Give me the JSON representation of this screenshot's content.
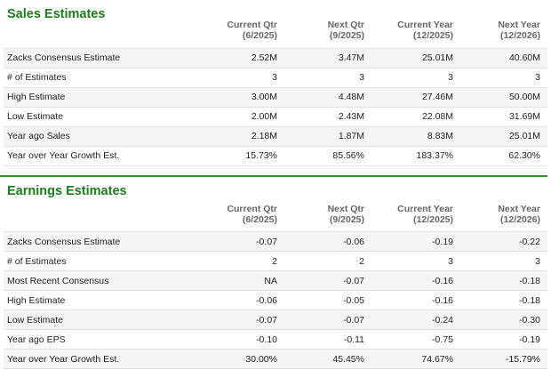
{
  "sales": {
    "title": "Sales Estimates",
    "headers": [
      {
        "line1": "Current Qtr",
        "line2": "(6/2025)"
      },
      {
        "line1": "Next Qtr",
        "line2": "(9/2025)"
      },
      {
        "line1": "Current Year",
        "line2": "(12/2025)"
      },
      {
        "line1": "Next Year",
        "line2": "(12/2026)"
      }
    ],
    "rows": [
      {
        "label": "Zacks Consensus Estimate",
        "values": [
          "2.52M",
          "3.47M",
          "25.01M",
          "40.60M"
        ]
      },
      {
        "label": "# of Estimates",
        "values": [
          "3",
          "3",
          "3",
          "3"
        ]
      },
      {
        "label": "High Estimate",
        "values": [
          "3.00M",
          "4.48M",
          "27.46M",
          "50.00M"
        ]
      },
      {
        "label": "Low Estimate",
        "values": [
          "2.00M",
          "2.43M",
          "22.08M",
          "31.69M"
        ]
      },
      {
        "label": "Year ago Sales",
        "values": [
          "2.18M",
          "1.87M",
          "8.83M",
          "25.01M"
        ]
      },
      {
        "label": "Year over Year Growth Est.",
        "values": [
          "15.73%",
          "85.56%",
          "183.37%",
          "62.30%"
        ]
      }
    ]
  },
  "earnings": {
    "title": "Earnings Estimates",
    "headers": [
      {
        "line1": "Current Qtr",
        "line2": "(6/2025)"
      },
      {
        "line1": "Next Qtr",
        "line2": "(9/2025)"
      },
      {
        "line1": "Current Year",
        "line2": "(12/2025)"
      },
      {
        "line1": "Next Year",
        "line2": "(12/2026)"
      }
    ],
    "rows": [
      {
        "label": "Zacks Consensus Estimate",
        "values": [
          "-0.07",
          "-0.06",
          "-0.19",
          "-0.22"
        ]
      },
      {
        "label": "# of Estimates",
        "values": [
          "2",
          "2",
          "3",
          "3"
        ]
      },
      {
        "label": "Most Recent Consensus",
        "values": [
          "NA",
          "-0.07",
          "-0.16",
          "-0.18"
        ]
      },
      {
        "label": "High Estimate",
        "values": [
          "-0.06",
          "-0.05",
          "-0.16",
          "-0.18"
        ]
      },
      {
        "label": "Low Estimate",
        "values": [
          "-0.07",
          "-0.07",
          "-0.24",
          "-0.30"
        ]
      },
      {
        "label": "Year ago EPS",
        "values": [
          "-0.10",
          "-0.11",
          "-0.75",
          "-0.19"
        ]
      },
      {
        "label": "Year over Year Growth Est.",
        "values": [
          "30.00%",
          "45.45%",
          "74.67%",
          "-15.79%"
        ]
      }
    ]
  },
  "colors": {
    "title_green": "#1e7a1e",
    "divider_green": "#2e8b2e",
    "header_gray": "#666666",
    "stripe": "#f5f5f5"
  }
}
